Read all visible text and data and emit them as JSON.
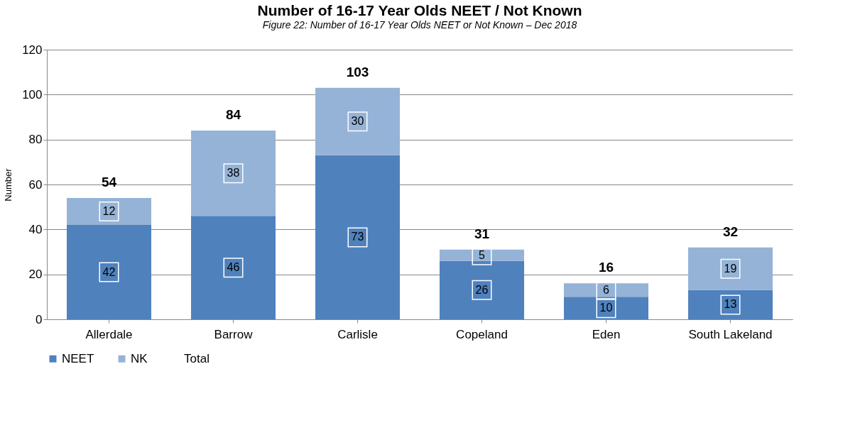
{
  "chart_data": {
    "type": "bar",
    "title": "Number of 16-17 Year Olds NEET / Not Known",
    "ylabel": "Number",
    "annotations": [
      "Figure 22: Number of 16-17 Year Olds NEET or Not Known – Dec 2018"
    ],
    "categories": [
      "Allerdale",
      "Barrow",
      "Carlisle",
      "Copeland",
      "Eden",
      "South Lakeland"
    ],
    "stacked": true,
    "series": [
      {
        "name": "NEET",
        "color": "#4f81bd",
        "values": [
          42,
          46,
          73,
          26,
          10,
          13
        ]
      },
      {
        "name": "NK",
        "color": "#95b3d7",
        "values": [
          12,
          38,
          30,
          5,
          6,
          19
        ]
      },
      {
        "name": "Total",
        "color": null,
        "values": [
          null,
          null,
          null,
          null,
          null,
          null
        ]
      }
    ],
    "totals": [
      "54",
      "84",
      "103",
      "31",
      "16",
      "32"
    ],
    "ylim": [
      0,
      120
    ],
    "yticks": [
      0,
      20,
      40,
      60,
      80,
      100,
      120
    ],
    "grid": "y",
    "legend": "bottom",
    "data_labels": true
  }
}
